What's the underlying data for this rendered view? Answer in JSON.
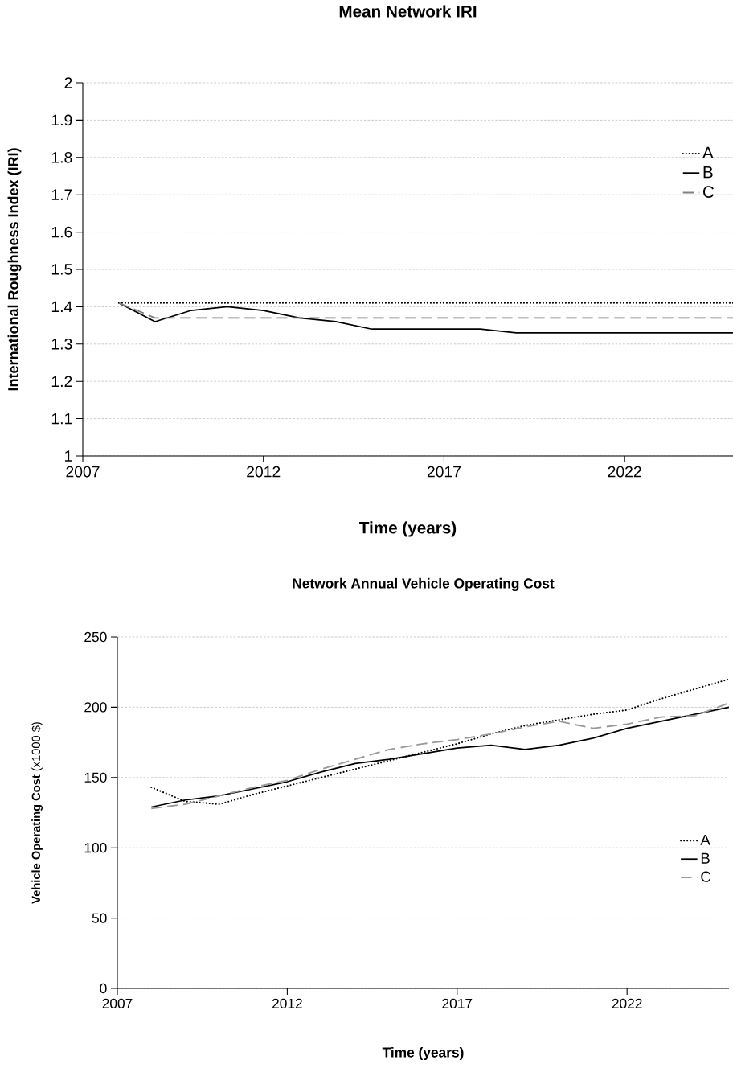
{
  "chart_data": [
    {
      "type": "line",
      "title": "Mean Network IRI",
      "xlabel": "Time (years)",
      "ylabel": "International Roughness Index (IRI)",
      "x": [
        2008,
        2009,
        2010,
        2011,
        2012,
        2013,
        2014,
        2015,
        2016,
        2017,
        2018,
        2019,
        2020,
        2021,
        2022,
        2023,
        2024,
        2025
      ],
      "series": [
        {
          "name": "A",
          "color": "#000000",
          "line_style": "dotted",
          "values": [
            1.41,
            1.41,
            1.41,
            1.41,
            1.41,
            1.41,
            1.41,
            1.41,
            1.41,
            1.41,
            1.41,
            1.41,
            1.41,
            1.41,
            1.41,
            1.41,
            1.41,
            1.41
          ]
        },
        {
          "name": "B",
          "color": "#000000",
          "line_style": "solid",
          "values": [
            1.41,
            1.36,
            1.39,
            1.4,
            1.39,
            1.37,
            1.36,
            1.34,
            1.34,
            1.34,
            1.34,
            1.33,
            1.33,
            1.33,
            1.33,
            1.33,
            1.33,
            1.33
          ]
        },
        {
          "name": "C",
          "color": "#808080",
          "line_style": "dashed",
          "values": [
            1.41,
            1.37,
            1.37,
            1.37,
            1.37,
            1.37,
            1.37,
            1.37,
            1.37,
            1.37,
            1.37,
            1.37,
            1.37,
            1.37,
            1.37,
            1.37,
            1.37,
            1.37
          ]
        }
      ],
      "xlim": [
        2007,
        2025
      ],
      "xticks": [
        2007,
        2012,
        2017,
        2022
      ],
      "ylim": [
        1,
        2
      ],
      "yticks": [
        1,
        1.1,
        1.2,
        1.3,
        1.4,
        1.5,
        1.6,
        1.7,
        1.8,
        1.9,
        2
      ],
      "grid": "y",
      "legend": "top right"
    },
    {
      "type": "line",
      "title": "Network Annual Vehicle Operating Cost",
      "xlabel": "Time (years)",
      "ylabel": "**Vehicle Operating Cost** (x1000 $)",
      "x": [
        2008,
        2009,
        2010,
        2011,
        2012,
        2013,
        2014,
        2015,
        2016,
        2017,
        2018,
        2019,
        2020,
        2021,
        2022,
        2023,
        2024,
        2025
      ],
      "series": [
        {
          "name": "A",
          "color": "#000000",
          "line_style": "dotted",
          "values": [
            143,
            133,
            131,
            138,
            144,
            150,
            156,
            162,
            168,
            174,
            181,
            187,
            191,
            195,
            198,
            206,
            213,
            220
          ]
        },
        {
          "name": "B",
          "color": "#000000",
          "line_style": "solid",
          "values": [
            129,
            134,
            137,
            142,
            147,
            154,
            160,
            163,
            167,
            171,
            173,
            170,
            173,
            178,
            185,
            190,
            195,
            200
          ]
        },
        {
          "name": "C",
          "color": "#999999",
          "line_style": "dashed",
          "values": [
            128,
            131,
            137,
            143,
            148,
            156,
            163,
            170,
            174,
            177,
            181,
            186,
            190,
            185,
            188,
            193,
            194,
            203
          ]
        }
      ],
      "xlim": [
        2007,
        2025
      ],
      "xticks": [
        2007,
        2012,
        2017,
        2022
      ],
      "ylim": [
        0,
        250
      ],
      "yticks": [
        0,
        50,
        100,
        150,
        200,
        250
      ],
      "grid": "y",
      "legend": "right"
    }
  ]
}
